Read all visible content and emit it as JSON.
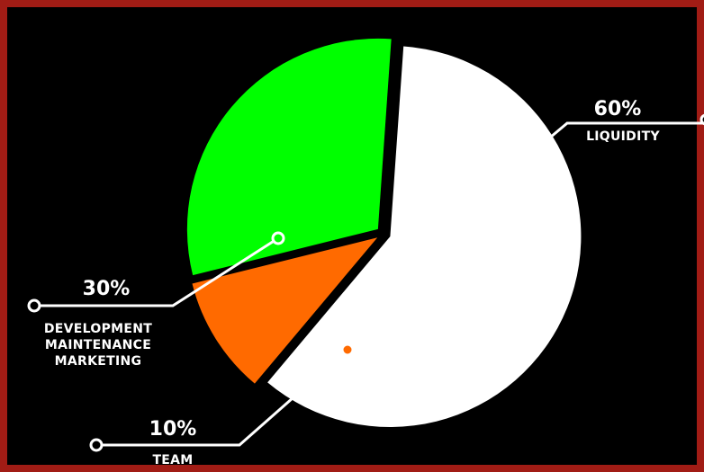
{
  "chart_data": {
    "type": "pie",
    "slices": [
      {
        "key": "liquidity",
        "label_lines": [
          "LIQUIDITY"
        ],
        "percent_text": "60%",
        "value": 60,
        "color": "#ffffff"
      },
      {
        "key": "team",
        "label_lines": [
          "TEAM"
        ],
        "percent_text": "10%",
        "value": 10,
        "color": "#ff6a00"
      },
      {
        "key": "development",
        "label_lines": [
          "DEVELOPMENT",
          "MAINTENANCE",
          "MARKETING"
        ],
        "percent_text": "30%",
        "value": 30,
        "color": "#00ff00"
      }
    ]
  },
  "colors": {
    "background": "#000000",
    "frame": "#a11c15",
    "leader_line": "#ffffff"
  }
}
